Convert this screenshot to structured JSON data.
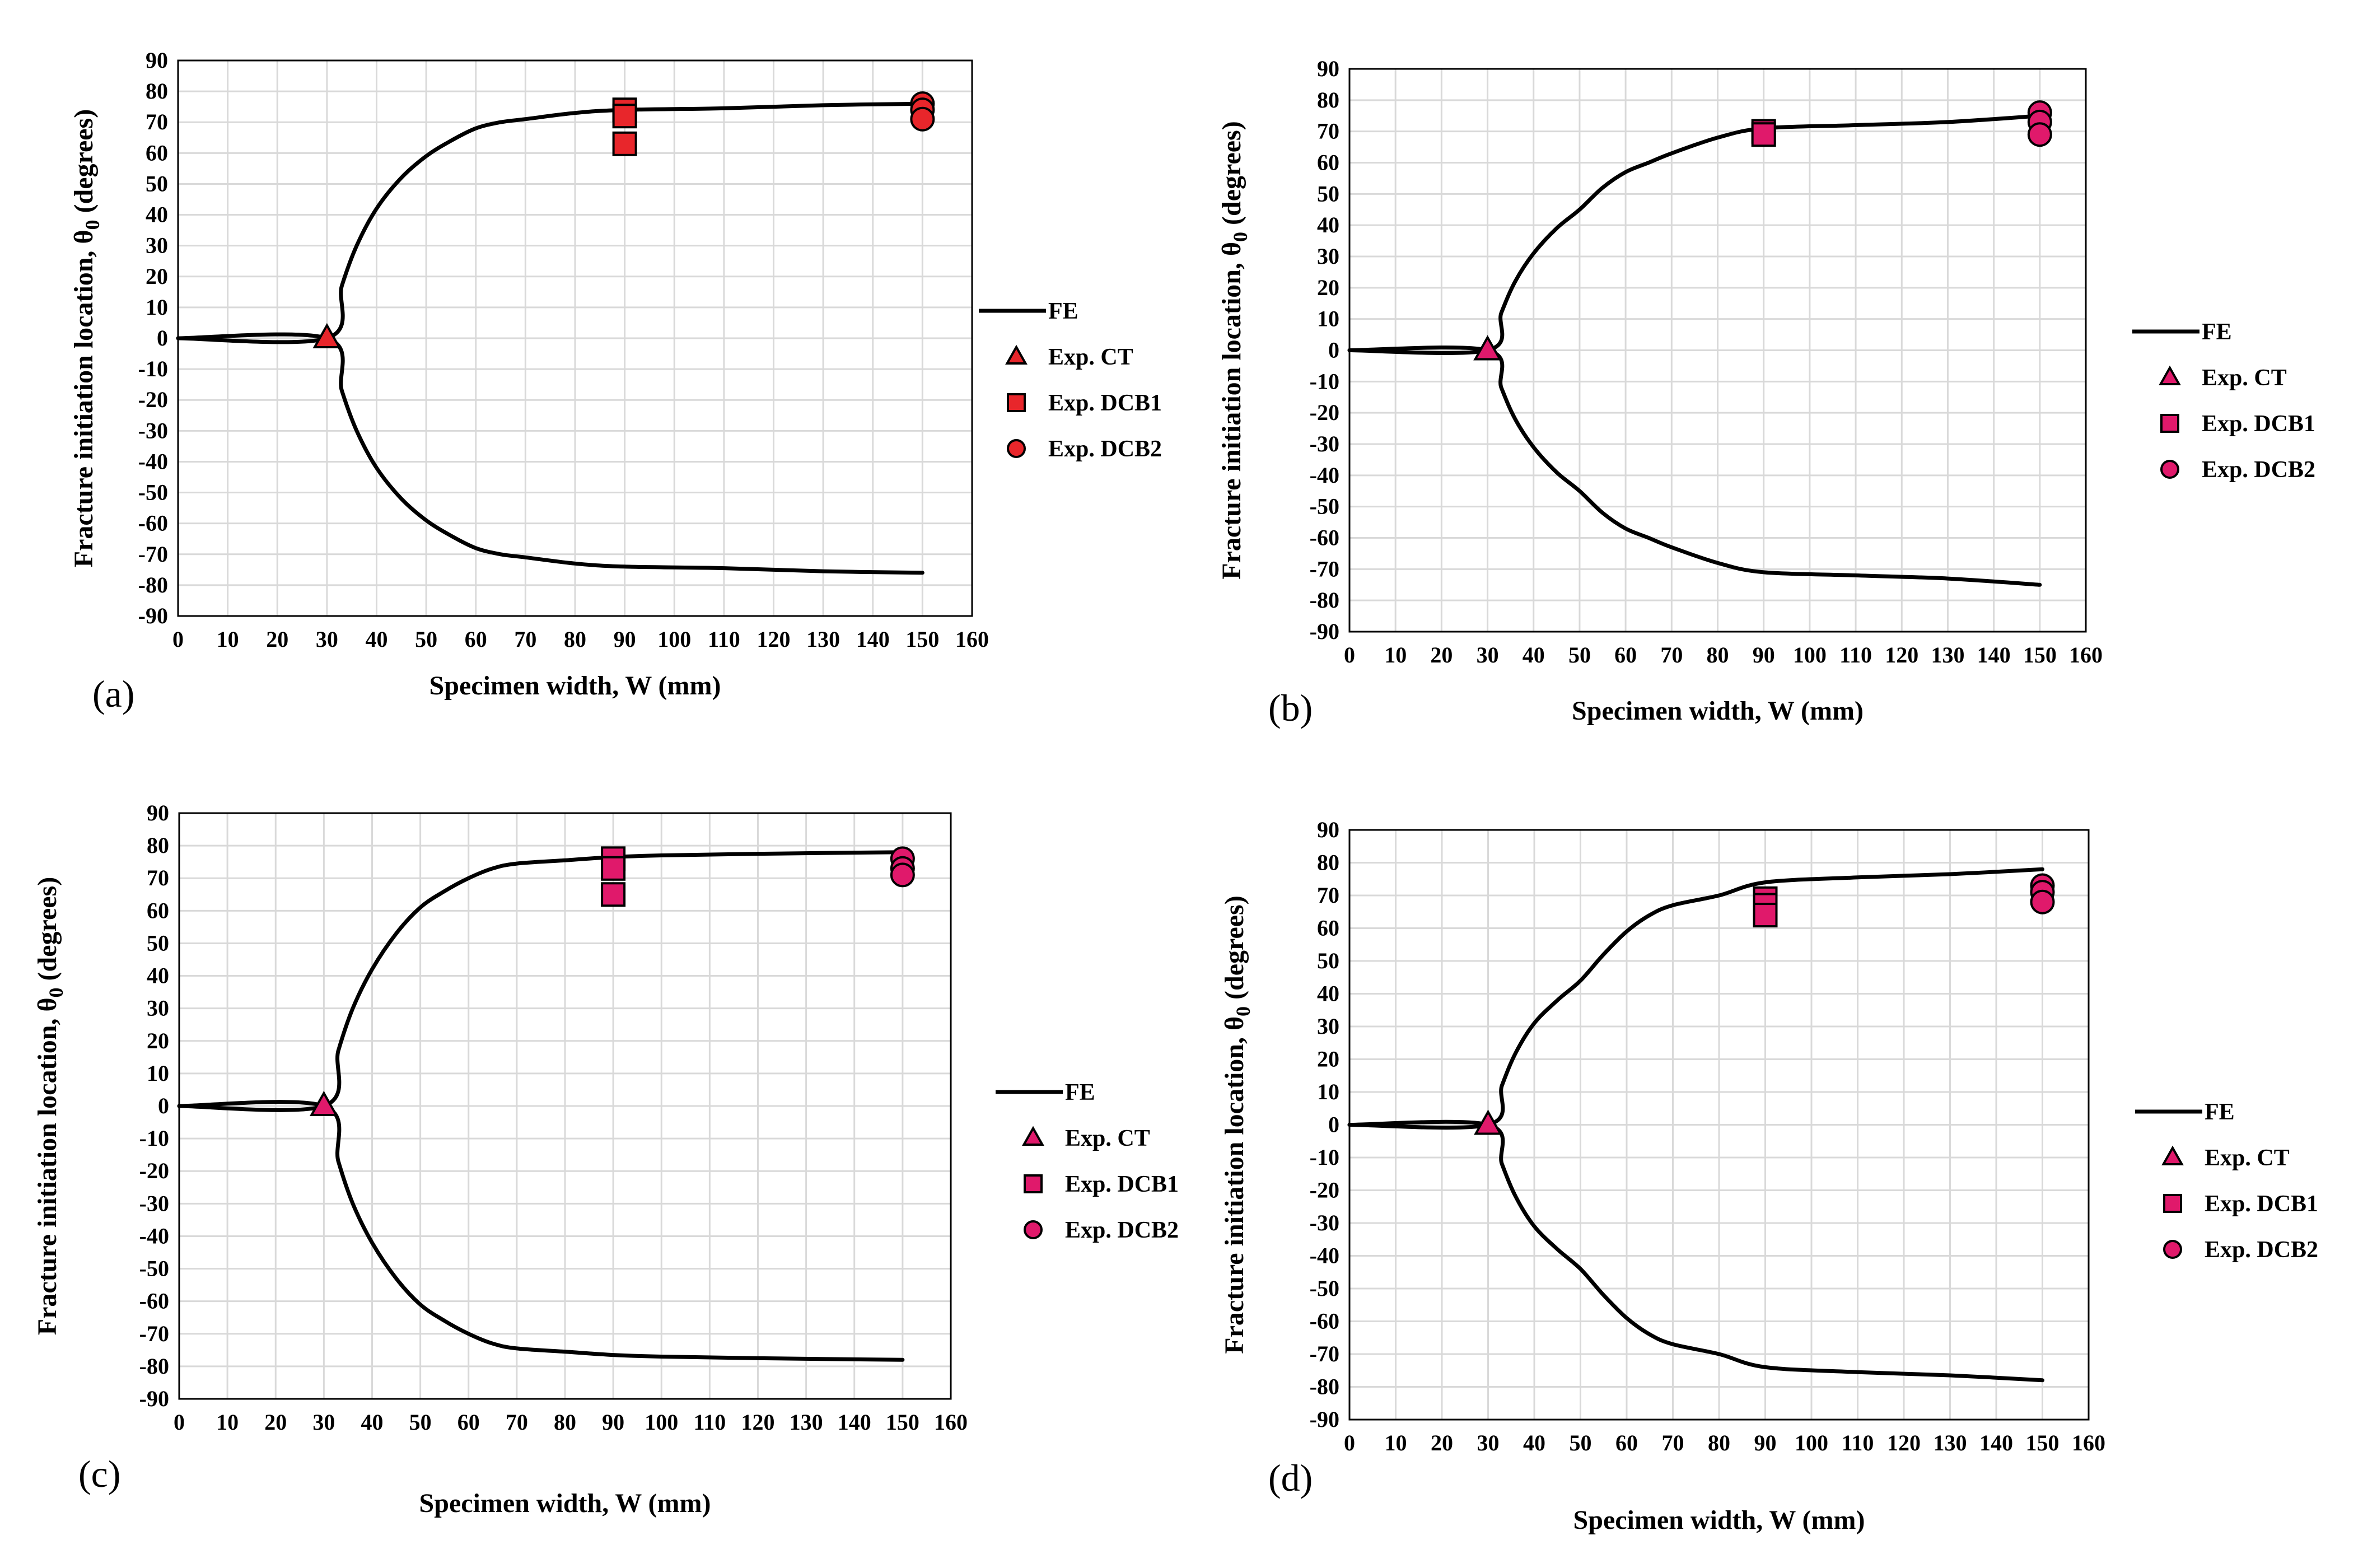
{
  "colors": {
    "fe_line": "#000000",
    "grid": "#d9d9d9",
    "marker_red": "#e8262b",
    "marker_pink": "#e0196b",
    "marker_edge": "#000000"
  },
  "chart_data": [
    {
      "type": "scatter",
      "panel_label": "(a)",
      "xlabel": "Specimen width, W (mm)",
      "ylabel_main": "Fracture initiation location, θ",
      "ylabel_sub": "0",
      "ylabel_end": " (degrees)",
      "xlim": [
        0,
        160
      ],
      "ylim": [
        -90,
        90
      ],
      "xticks": [
        0,
        10,
        20,
        30,
        40,
        50,
        60,
        70,
        80,
        90,
        100,
        110,
        120,
        130,
        140,
        150,
        160
      ],
      "yticks": [
        -90,
        -80,
        -70,
        -60,
        -50,
        -40,
        -30,
        -20,
        -10,
        0,
        10,
        20,
        30,
        40,
        50,
        60,
        70,
        80,
        90
      ],
      "marker_color": "#e8262b",
      "legend": [
        "FE",
        "Exp. CT",
        "Exp. DCB1",
        "Exp. DCB2"
      ],
      "series": [
        {
          "name": "FE",
          "kind": "line",
          "x": [
            0,
            30,
            33,
            36,
            40,
            45,
            50,
            55,
            60,
            65,
            70,
            80,
            90,
            110,
            130,
            150
          ],
          "y": [
            0,
            0,
            17,
            30,
            42,
            52,
            59,
            64,
            68,
            70,
            71,
            73,
            74,
            74.5,
            75.5,
            76
          ]
        },
        {
          "name": "FE",
          "kind": "line",
          "x": [
            0,
            30,
            33,
            36,
            40,
            45,
            50,
            55,
            60,
            65,
            70,
            80,
            90,
            110,
            130,
            150
          ],
          "y": [
            0,
            0,
            -17,
            -30,
            -42,
            -52,
            -59,
            -64,
            -68,
            -70,
            -71,
            -73,
            -74,
            -74.5,
            -75.5,
            -76
          ]
        },
        {
          "name": "Exp. CT",
          "kind": "triangle",
          "x": [
            30
          ],
          "y": [
            0
          ]
        },
        {
          "name": "Exp. DCB1",
          "kind": "square",
          "x": [
            90,
            90,
            90
          ],
          "y": [
            74,
            72,
            63
          ]
        },
        {
          "name": "Exp. DCB2",
          "kind": "circle",
          "x": [
            150,
            150,
            150
          ],
          "y": [
            76,
            74,
            71
          ]
        }
      ]
    },
    {
      "type": "scatter",
      "panel_label": "(b)",
      "xlabel": "Specimen width, W (mm)",
      "ylabel_main": "Fracture initiation location, θ",
      "ylabel_sub": "0",
      "ylabel_end": " (degrees)",
      "xlim": [
        0,
        160
      ],
      "ylim": [
        -90,
        90
      ],
      "xticks": [
        0,
        10,
        20,
        30,
        40,
        50,
        60,
        70,
        80,
        90,
        100,
        110,
        120,
        130,
        140,
        150,
        160
      ],
      "yticks": [
        -90,
        -80,
        -70,
        -60,
        -50,
        -40,
        -30,
        -20,
        -10,
        0,
        10,
        20,
        30,
        40,
        50,
        60,
        70,
        80,
        90
      ],
      "marker_color": "#e0196b",
      "legend": [
        "FE",
        "Exp. CT",
        "Exp. DCB1",
        "Exp. DCB2"
      ],
      "series": [
        {
          "name": "FE",
          "kind": "line",
          "x": [
            0,
            30,
            33,
            36,
            40,
            45,
            50,
            55,
            60,
            65,
            70,
            80,
            90,
            110,
            130,
            150
          ],
          "y": [
            0,
            0,
            12,
            22,
            31,
            39,
            45,
            52,
            57,
            60,
            63,
            68,
            71,
            72,
            73,
            75
          ]
        },
        {
          "name": "FE",
          "kind": "line",
          "x": [
            0,
            30,
            33,
            36,
            40,
            45,
            50,
            55,
            60,
            65,
            70,
            80,
            90,
            110,
            130,
            150
          ],
          "y": [
            0,
            0,
            -12,
            -22,
            -31,
            -39,
            -45,
            -52,
            -57,
            -60,
            -63,
            -68,
            -71,
            -72,
            -73,
            -75
          ]
        },
        {
          "name": "Exp. CT",
          "kind": "triangle",
          "x": [
            30
          ],
          "y": [
            0
          ]
        },
        {
          "name": "Exp. DCB1",
          "kind": "square",
          "x": [
            90,
            90
          ],
          "y": [
            70,
            69
          ]
        },
        {
          "name": "Exp. DCB2",
          "kind": "circle",
          "x": [
            150,
            150,
            150
          ],
          "y": [
            76,
            73,
            69
          ]
        }
      ]
    },
    {
      "type": "scatter",
      "panel_label": "(c)",
      "xlabel": "Specimen width, W (mm)",
      "ylabel_main": "Fracture initiation location, θ",
      "ylabel_sub": "0",
      "ylabel_end": " (degrees)",
      "xlim": [
        0,
        160
      ],
      "ylim": [
        -90,
        90
      ],
      "xticks": [
        0,
        10,
        20,
        30,
        40,
        50,
        60,
        70,
        80,
        90,
        100,
        110,
        120,
        130,
        140,
        150,
        160
      ],
      "yticks": [
        -90,
        -80,
        -70,
        -60,
        -50,
        -40,
        -30,
        -20,
        -10,
        0,
        10,
        20,
        30,
        40,
        50,
        60,
        70,
        80,
        90
      ],
      "marker_color": "#e0196b",
      "legend": [
        "FE",
        "Exp. CT",
        "Exp. DCB1",
        "Exp. DCB2"
      ],
      "series": [
        {
          "name": "FE",
          "kind": "line",
          "x": [
            0,
            30,
            33,
            36,
            40,
            45,
            50,
            55,
            60,
            65,
            70,
            80,
            90,
            100,
            120,
            150
          ],
          "y": [
            0,
            0,
            17,
            30,
            42,
            53,
            61,
            66,
            70,
            73,
            74.5,
            75.5,
            76.5,
            77,
            77.5,
            78
          ]
        },
        {
          "name": "FE",
          "kind": "line",
          "x": [
            0,
            30,
            33,
            36,
            40,
            45,
            50,
            55,
            60,
            65,
            70,
            80,
            90,
            100,
            120,
            150
          ],
          "y": [
            0,
            0,
            -17,
            -30,
            -42,
            -53,
            -61,
            -66,
            -70,
            -73,
            -74.5,
            -75.5,
            -76.5,
            -77,
            -77.5,
            -78
          ]
        },
        {
          "name": "Exp. CT",
          "kind": "triangle",
          "x": [
            30
          ],
          "y": [
            0
          ]
        },
        {
          "name": "Exp. DCB1",
          "kind": "square",
          "x": [
            90,
            90,
            90
          ],
          "y": [
            76,
            73,
            65
          ]
        },
        {
          "name": "Exp. DCB2",
          "kind": "circle",
          "x": [
            150,
            150,
            150
          ],
          "y": [
            76,
            73,
            71
          ]
        }
      ]
    },
    {
      "type": "scatter",
      "panel_label": "(d)",
      "xlabel": "Specimen width, W (mm)",
      "ylabel_main": "Fracture initiation location, θ",
      "ylabel_sub": "0",
      "ylabel_end": " (degrees)",
      "xlim": [
        0,
        160
      ],
      "ylim": [
        -90,
        90
      ],
      "xticks": [
        0,
        10,
        20,
        30,
        40,
        50,
        60,
        70,
        80,
        90,
        100,
        110,
        120,
        130,
        140,
        150,
        160
      ],
      "yticks": [
        -90,
        -80,
        -70,
        -60,
        -50,
        -40,
        -30,
        -20,
        -10,
        0,
        10,
        20,
        30,
        40,
        50,
        60,
        70,
        80,
        90
      ],
      "marker_color": "#e0196b",
      "legend": [
        "FE",
        "Exp. CT",
        "Exp. DCB1",
        "Exp. DCB2"
      ],
      "series": [
        {
          "name": "FE",
          "kind": "line",
          "x": [
            0,
            30,
            33,
            36,
            40,
            45,
            50,
            55,
            60,
            65,
            70,
            80,
            90,
            110,
            130,
            150
          ],
          "y": [
            0,
            0,
            12,
            22,
            31,
            38,
            44,
            52,
            59,
            64,
            67,
            70,
            74,
            75.5,
            76.5,
            78
          ]
        },
        {
          "name": "FE",
          "kind": "line",
          "x": [
            0,
            30,
            33,
            36,
            40,
            45,
            50,
            55,
            60,
            65,
            70,
            80,
            90,
            110,
            130,
            150
          ],
          "y": [
            0,
            0,
            -12,
            -22,
            -31,
            -38,
            -44,
            -52,
            -59,
            -64,
            -67,
            -70,
            -74,
            -75.5,
            -76.5,
            -78
          ]
        },
        {
          "name": "Exp. CT",
          "kind": "triangle",
          "x": [
            30
          ],
          "y": [
            0
          ]
        },
        {
          "name": "Exp. DCB1",
          "kind": "square",
          "x": [
            90,
            90,
            90
          ],
          "y": [
            69,
            67,
            64
          ]
        },
        {
          "name": "Exp. DCB2",
          "kind": "circle",
          "x": [
            150,
            150,
            150
          ],
          "y": [
            73,
            71,
            68
          ]
        }
      ]
    }
  ]
}
